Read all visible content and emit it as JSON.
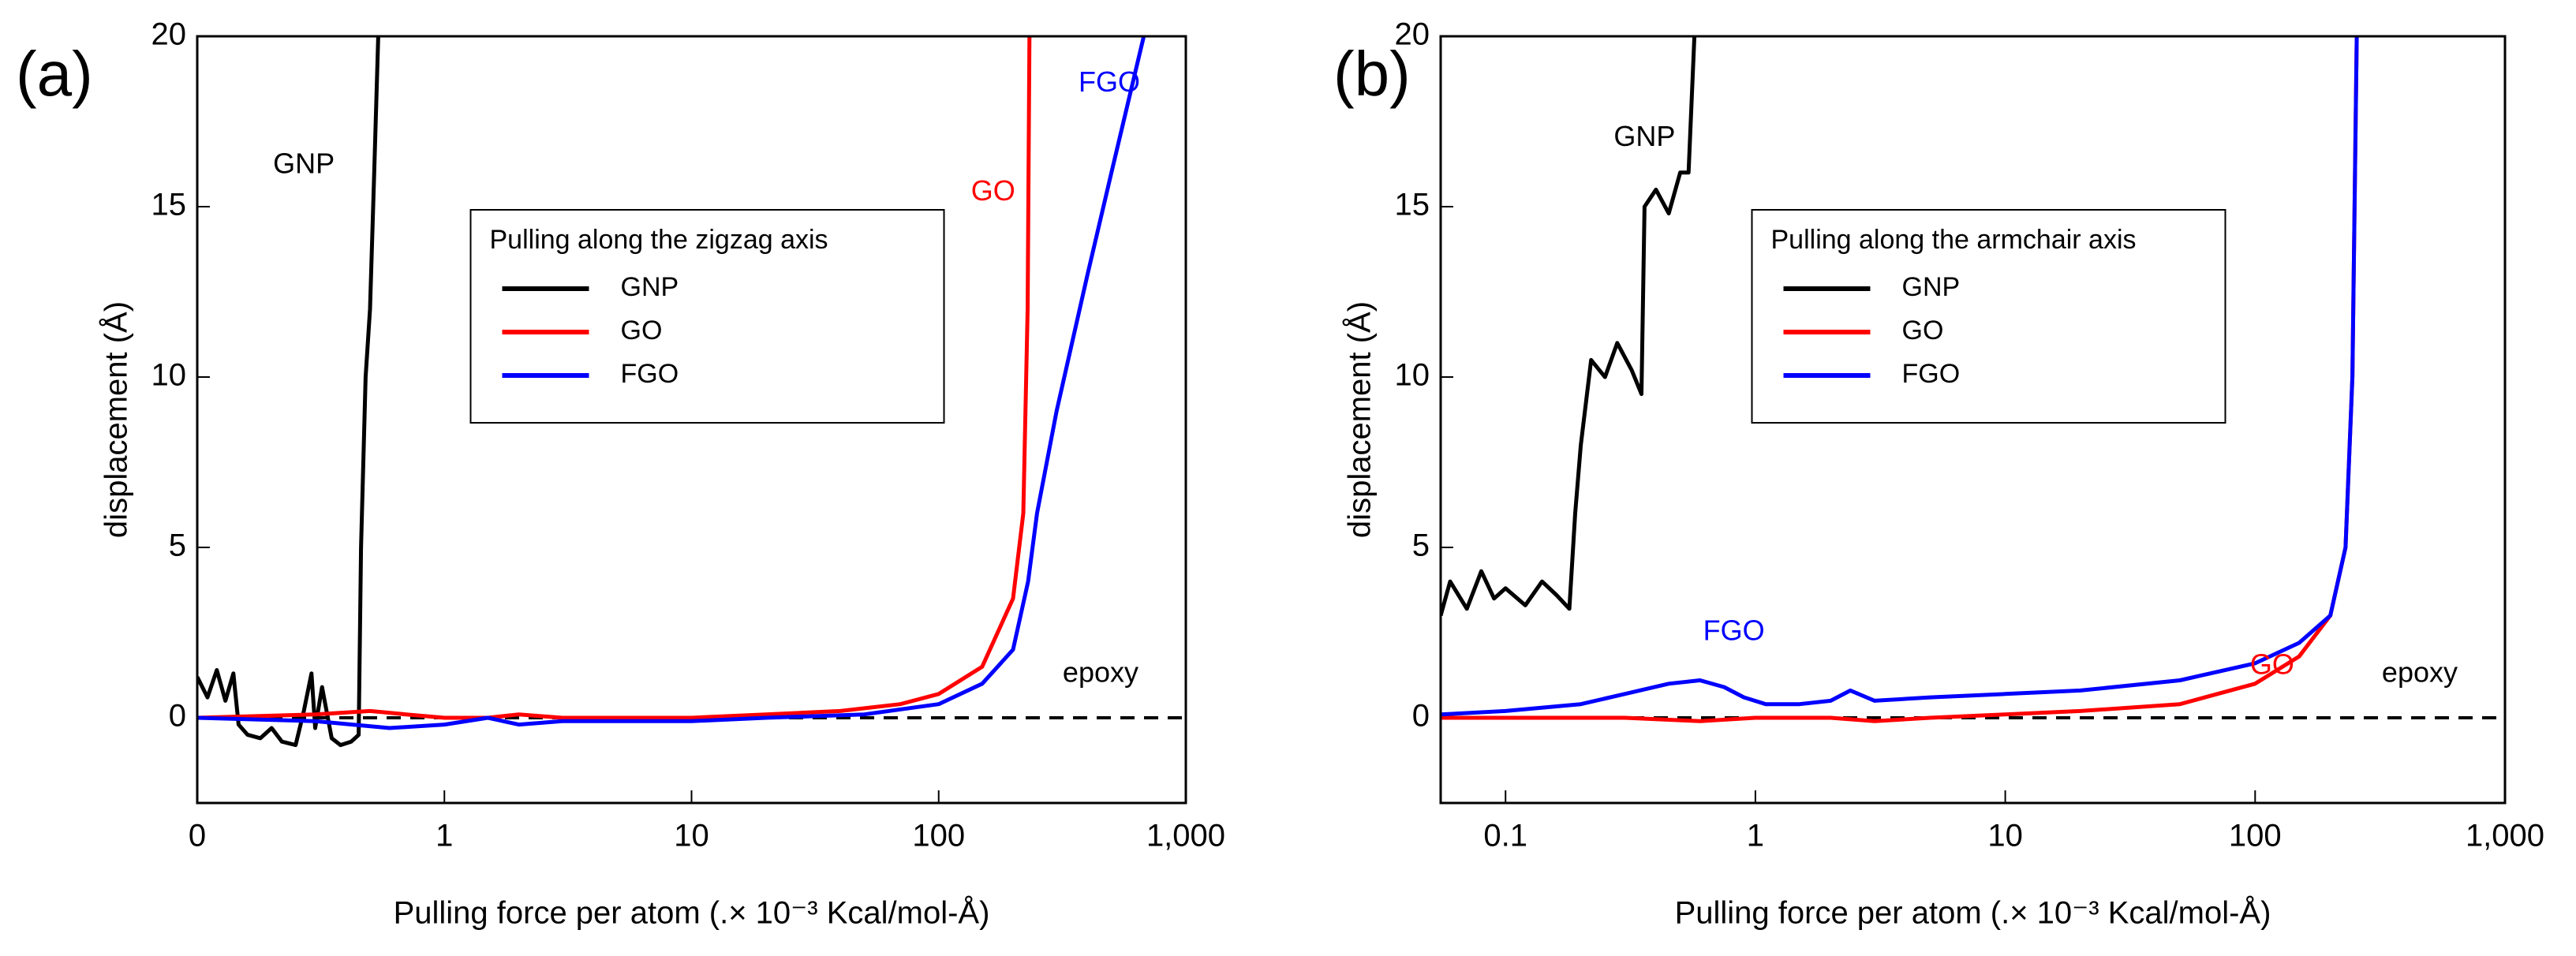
{
  "chart_data": [
    {
      "type": "line",
      "panel_label": "(a)",
      "x_label": "Pulling force per atom (.× 10⁻³ Kcal/mol-Å)",
      "y_label": "displacement (Å)",
      "xscale": "log",
      "xlim": [
        0.1,
        1000
      ],
      "ylim": [
        -2.5,
        20
      ],
      "xticks": [
        {
          "value": 0.1,
          "label": "0"
        },
        1,
        10,
        100,
        {
          "value": 1000,
          "label": "1,000"
        }
      ],
      "yticks": [
        0,
        5,
        10,
        15,
        20
      ],
      "legend_title": "Pulling along the zigzag axis",
      "legend_position": "upper center",
      "reference_line": {
        "y": 0,
        "label": "epoxy",
        "style": "dashed"
      },
      "series": [
        {
          "name": "GNP",
          "color": "#000000",
          "x": [
            0.1,
            0.11,
            0.12,
            0.13,
            0.14,
            0.147,
            0.16,
            0.18,
            0.2,
            0.22,
            0.25,
            0.27,
            0.29,
            0.3,
            0.32,
            0.35,
            0.38,
            0.42,
            0.45,
            0.46,
            0.48,
            0.5,
            0.52,
            0.54
          ],
          "values": [
            1.2,
            0.6,
            1.4,
            0.5,
            1.3,
            -0.2,
            -0.5,
            -0.6,
            -0.3,
            -0.7,
            -0.8,
            0.2,
            1.3,
            -0.3,
            0.9,
            -0.6,
            -0.8,
            -0.7,
            -0.5,
            5,
            10,
            12,
            16,
            20
          ]
        },
        {
          "name": "GO",
          "color": "#ff0000",
          "x": [
            0.1,
            0.3,
            0.5,
            0.7,
            1,
            1.5,
            2,
            3,
            5,
            10,
            20,
            40,
            70,
            100,
            150,
            200,
            220,
            229,
            233
          ],
          "values": [
            0,
            0.1,
            0.2,
            0.1,
            0,
            0,
            0.1,
            0,
            0,
            0,
            0.1,
            0.2,
            0.4,
            0.7,
            1.5,
            3.5,
            6,
            12,
            20
          ]
        },
        {
          "name": "FGO",
          "color": "#0000ff",
          "x": [
            0.1,
            0.3,
            0.6,
            1,
            1.5,
            2,
            3,
            5,
            10,
            20,
            50,
            100,
            150,
            200,
            230,
            250,
            300,
            400,
            500,
            676
          ],
          "values": [
            0,
            -0.1,
            -0.3,
            -0.2,
            0,
            -0.2,
            -0.1,
            -0.1,
            -0.1,
            0,
            0.1,
            0.4,
            1,
            2,
            4,
            6,
            9,
            13,
            16,
            20
          ]
        }
      ],
      "annotations": [
        {
          "text": "GNP",
          "color": "#000000"
        },
        {
          "text": "GO",
          "color": "#ff0000"
        },
        {
          "text": "FGO",
          "color": "#0000ff"
        }
      ]
    },
    {
      "type": "line",
      "panel_label": "(b)",
      "x_label": "Pulling force per atom (.× 10⁻³ Kcal/mol-Å)",
      "y_label": "displacement (Å)",
      "xscale": "log",
      "xlim": [
        0.055,
        1000
      ],
      "ylim": [
        -2.5,
        20
      ],
      "xticks": [
        0.1,
        1,
        10,
        100,
        {
          "value": 1000,
          "label": "1,000"
        }
      ],
      "yticks": [
        0,
        5,
        10,
        15,
        20
      ],
      "legend_title": "Pulling along the armchair axis",
      "legend_position": "upper center",
      "reference_line": {
        "y": 0,
        "label": "epoxy",
        "style": "dashed"
      },
      "series": [
        {
          "name": "GNP",
          "color": "#000000",
          "x": [
            0.055,
            0.06,
            0.07,
            0.08,
            0.09,
            0.1,
            0.12,
            0.14,
            0.16,
            0.18,
            0.19,
            0.2,
            0.22,
            0.25,
            0.28,
            0.32,
            0.35,
            0.36,
            0.4,
            0.45,
            0.5,
            0.54,
            0.57
          ],
          "values": [
            3,
            4,
            3.2,
            4.3,
            3.5,
            3.8,
            3.3,
            4,
            3.6,
            3.2,
            6,
            8,
            10.5,
            10,
            11,
            10.2,
            9.5,
            15,
            15.5,
            14.8,
            16,
            16,
            20
          ]
        },
        {
          "name": "GO",
          "color": "#ff0000",
          "x": [
            0.055,
            0.3,
            0.6,
            1,
            2,
            3,
            5,
            10,
            20,
            50,
            100,
            150,
            200,
            230,
            245,
            255
          ],
          "values": [
            0,
            0,
            -0.1,
            0,
            0,
            -0.1,
            0,
            0.1,
            0.2,
            0.4,
            1,
            1.8,
            3,
            5,
            10,
            20
          ]
        },
        {
          "name": "FGO",
          "color": "#0000ff",
          "x": [
            0.055,
            0.1,
            0.2,
            0.3,
            0.45,
            0.6,
            0.75,
            0.9,
            1.1,
            1.5,
            2,
            2.4,
            3,
            5,
            10,
            20,
            50,
            100,
            150,
            200,
            230,
            245,
            255
          ],
          "values": [
            0.1,
            0.2,
            0.4,
            0.7,
            1.0,
            1.1,
            0.9,
            0.6,
            0.4,
            0.4,
            0.5,
            0.8,
            0.5,
            0.6,
            0.7,
            0.8,
            1.1,
            1.6,
            2.2,
            3,
            5,
            10,
            20
          ]
        }
      ],
      "annotations": [
        {
          "text": "GNP",
          "color": "#000000"
        },
        {
          "text": "FGO",
          "color": "#0000ff"
        },
        {
          "text": "GO",
          "color": "#ff0000"
        }
      ]
    }
  ]
}
